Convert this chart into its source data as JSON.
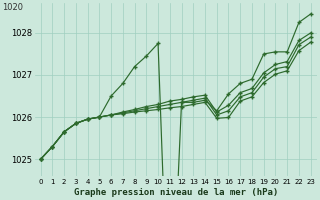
{
  "title": "Graphe pression niveau de la mer (hPa)",
  "bg_color": "#cce8dc",
  "line_color": "#2d6a2d",
  "grid_color": "#a0cfc0",
  "yticks": [
    1025,
    1026,
    1027,
    1028
  ],
  "ytick_top": 1020,
  "ylim": [
    1024.6,
    1028.7
  ],
  "xlim": [
    -0.5,
    23.5
  ],
  "x_labels": [
    "0",
    "1",
    "2",
    "3",
    "4",
    "5",
    "6",
    "7",
    "8",
    "9",
    "10",
    "11",
    "12",
    "13",
    "14",
    "15",
    "16",
    "17",
    "18",
    "19",
    "20",
    "21",
    "22",
    "23"
  ],
  "series": {
    "spike": [
      1025.0,
      1025.3,
      1025.65,
      1025.85,
      1025.95,
      1026.0,
      1026.5,
      1026.8,
      1027.2,
      1027.45,
      1027.75,
      1020.1,
      1026.35,
      1026.35,
      1026.4,
      1026.15,
      1026.55,
      1026.8,
      1026.9,
      1027.5,
      1027.55,
      1027.55,
      1028.25,
      1028.45
    ],
    "line1": [
      1025.0,
      1025.3,
      1025.65,
      1025.85,
      1025.95,
      1026.0,
      1026.05,
      1026.1,
      1026.15,
      1026.2,
      1026.25,
      1026.3,
      1026.35,
      1026.4,
      1026.45,
      1026.1,
      1026.15,
      1026.45,
      1026.55,
      1026.9,
      1027.1,
      1027.15,
      1027.65,
      1027.85
    ],
    "line2": [
      1025.0,
      1025.3,
      1025.65,
      1025.85,
      1025.95,
      1026.0,
      1026.05,
      1026.1,
      1026.15,
      1026.2,
      1026.25,
      1026.35,
      1026.4,
      1026.45,
      1026.5,
      1026.2,
      1026.3,
      1026.55,
      1026.65,
      1027.0,
      1027.2,
      1027.25,
      1027.75,
      1027.95
    ],
    "line3": [
      1025.0,
      1025.3,
      1025.65,
      1025.85,
      1025.95,
      1026.0,
      1026.05,
      1026.1,
      1026.15,
      1026.2,
      1026.25,
      1026.4,
      1026.45,
      1026.5,
      1026.55,
      1026.3,
      1026.45,
      1026.65,
      1026.75,
      1027.1,
      1027.3,
      1027.35,
      1027.85,
      1028.05
    ],
    "line4": [
      1025.0,
      1025.3,
      1025.65,
      1025.85,
      1025.95,
      1026.0,
      1026.05,
      1026.1,
      1026.15,
      1026.2,
      1026.25,
      1026.45,
      1026.5,
      1026.55,
      1026.6,
      1025.97,
      1026.6,
      1026.72,
      1026.82,
      1027.2,
      1027.4,
      1027.45,
      1027.95,
      1028.15
    ]
  }
}
